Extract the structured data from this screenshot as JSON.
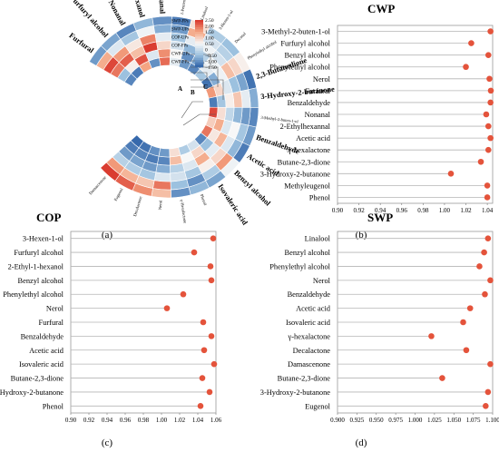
{
  "panels": {
    "a": {
      "label": "(a)"
    },
    "b": {
      "label": "(b)"
    },
    "c": {
      "label": "(c)"
    },
    "d": {
      "label": "(d)"
    }
  },
  "heatmap": {
    "type": "heatmap",
    "outer_labels": [
      "Furfural",
      "Furfuryl alcohol",
      "Nonanal",
      "2-Ethyl-1-hexanol",
      "2-Ethylhexanal",
      "1-Penten-3-ol",
      "Linalool",
      "3-Hexen-1-ol",
      "Decanal",
      "Phenylethyl alcohol",
      "2,3-Butanedione",
      "3-Hydroxy-2-butanone",
      "3-Methyl-2-buten-1-ol",
      "Benzaldehyde",
      "Acetic acid",
      "Benzyl alcohol",
      "Isovaleric acid",
      "Phenol",
      "γ-Hexalactone",
      "Nerol",
      "Decalactone",
      "Eugenol",
      "Damascenone"
    ],
    "ring_labels": [
      "SWP-FPs",
      "SWP-UPs",
      "COP-UPs",
      "COP-FPs",
      "CWP-UPs",
      "CWP-FPs"
    ],
    "cluster_labels": [
      "A",
      "B",
      "C"
    ],
    "colorbar": {
      "min": -1.5,
      "max": 2.5,
      "ticks": [
        "2.50",
        "2.00",
        "1.50",
        "1.00",
        "0.50",
        "0",
        "−0.50",
        "−1.00",
        "−1.50"
      ],
      "colors": [
        "#2b5fa6",
        "#9cc1df",
        "#f7f7f7",
        "#f4a582",
        "#d73027"
      ]
    },
    "values": [
      [
        -0.9,
        1.4,
        2.3,
        1.9,
        -0.5,
        -1.1
      ],
      [
        -0.8,
        0.2,
        1.6,
        2.1,
        0.6,
        -1.2
      ],
      [
        -1.1,
        -0.4,
        0.7,
        1.2,
        2.2,
        1.5
      ],
      [
        -0.6,
        0.4,
        1.8,
        2.4,
        0.2,
        -1.0
      ],
      [
        -1.0,
        -0.7,
        0.3,
        0.9,
        1.7,
        2.0
      ],
      [
        -1.2,
        -0.9,
        -0.4,
        0.1,
        0.5,
        0.3
      ],
      [
        0.8,
        1.4,
        0.3,
        -0.6,
        -1.0,
        -0.9
      ],
      [
        -0.3,
        0.1,
        0.4,
        -0.2,
        -0.8,
        -1.1
      ],
      [
        -0.5,
        -0.2,
        0.1,
        0.4,
        0.3,
        -0.4
      ],
      [
        0.6,
        0.9,
        1.2,
        0.4,
        -0.7,
        -1.3
      ],
      [
        -1.3,
        -0.8,
        -0.5,
        0.2,
        0.9,
        1.6
      ],
      [
        -0.7,
        0.3,
        1.1,
        0.6,
        -0.4,
        -1.2
      ],
      [
        -1.1,
        -0.9,
        -0.6,
        -0.1,
        0.8,
        2.3
      ],
      [
        -0.9,
        -0.4,
        0.5,
        0.2,
        1.4,
        1.0
      ],
      [
        -1.2,
        -0.6,
        0.2,
        1.3,
        0.7,
        1.9
      ],
      [
        0.4,
        1.6,
        0.9,
        0.3,
        -0.5,
        -1.1
      ],
      [
        -0.8,
        -0.3,
        0.6,
        1.4,
        0.9,
        0.1
      ],
      [
        -0.6,
        -1.0,
        -0.4,
        0.2,
        0.5,
        -0.3
      ],
      [
        -1.0,
        -0.5,
        0.1,
        -0.2,
        1.2,
        0.8
      ],
      [
        1.2,
        1.9,
        0.2,
        -0.7,
        -1.1,
        -0.9
      ],
      [
        1.7,
        1.1,
        -0.4,
        -0.9,
        -1.2,
        -1.0
      ],
      [
        2.1,
        1.3,
        -0.3,
        -0.8,
        -1.1,
        -1.3
      ],
      [
        2.4,
        1.6,
        -0.2,
        -0.9,
        -1.2,
        -1.4
      ]
    ]
  },
  "chart_data": [
    {
      "type": "scatter",
      "title": "CWP",
      "xlim": [
        0.9,
        1.045
      ],
      "xticks": [
        "0.90",
        "0.92",
        "0.94",
        "0.96",
        "0.98",
        "1.00",
        "1.02",
        "1.04"
      ],
      "categories": [
        "3-Methyl-2-buten-1-ol",
        "Furfuryl alcohol",
        "Benzyl alcohol",
        "Phenylethyl alcohol",
        "Nerol",
        "Furfural",
        "Benzaldehyde",
        "Nonanal",
        "2-Ethylhexannal",
        "Acetic acid",
        "γ-hexalactone",
        "Butane-2,3-dione",
        "3-Hydroxy-2-butanone",
        "Methyleugenol",
        "Phenol"
      ],
      "values": [
        1.043,
        1.025,
        1.041,
        1.02,
        1.042,
        1.044,
        1.043,
        1.039,
        1.041,
        1.043,
        1.041,
        1.034,
        1.006,
        1.04,
        1.04
      ]
    },
    {
      "type": "scatter",
      "title": "COP",
      "xlim": [
        0.9,
        1.06
      ],
      "xticks": [
        "0.90",
        "0.92",
        "0.94",
        "0.96",
        "0.98",
        "1.00",
        "1.02",
        "1.04",
        "1.06"
      ],
      "categories": [
        "3-Hexen-1-ol",
        "Furfuryl alcohol",
        "2-Ethyl-1-hexanol",
        "Benzyl alcohol",
        "Phenylethyl alcohol",
        "Nerol",
        "Furfural",
        "Benzaldehyde",
        "Acetic acid",
        "Isovaleric acid",
        "Butane-2,3-dione",
        "3-Hydroxy-2-butanone",
        "Phenol"
      ],
      "values": [
        1.057,
        1.036,
        1.054,
        1.055,
        1.024,
        1.006,
        1.046,
        1.055,
        1.047,
        1.058,
        1.045,
        1.053,
        1.043
      ]
    },
    {
      "type": "scatter",
      "title": "SWP",
      "xlim": [
        0.9,
        1.1
      ],
      "xticks": [
        "0.900",
        "0.925",
        "0.950",
        "0.975",
        "1.000",
        "1.025",
        "1.050",
        "1.075",
        "1.100"
      ],
      "categories": [
        "Linalool",
        "Benzyl alcohol",
        "Phenylethyl alcohol",
        "Nerol",
        "Benzaldehyde",
        "Acetic acid",
        "Isovaleric acid",
        "γ-hexalactone",
        "Decalactone",
        "Damascenone",
        "Butane-2,3-dione",
        "3-Hydroxy-2-butanone",
        "Eugenol"
      ],
      "values": [
        1.094,
        1.089,
        1.083,
        1.097,
        1.09,
        1.071,
        1.062,
        1.021,
        1.066,
        1.097,
        1.035,
        1.094,
        1.091
      ]
    }
  ]
}
